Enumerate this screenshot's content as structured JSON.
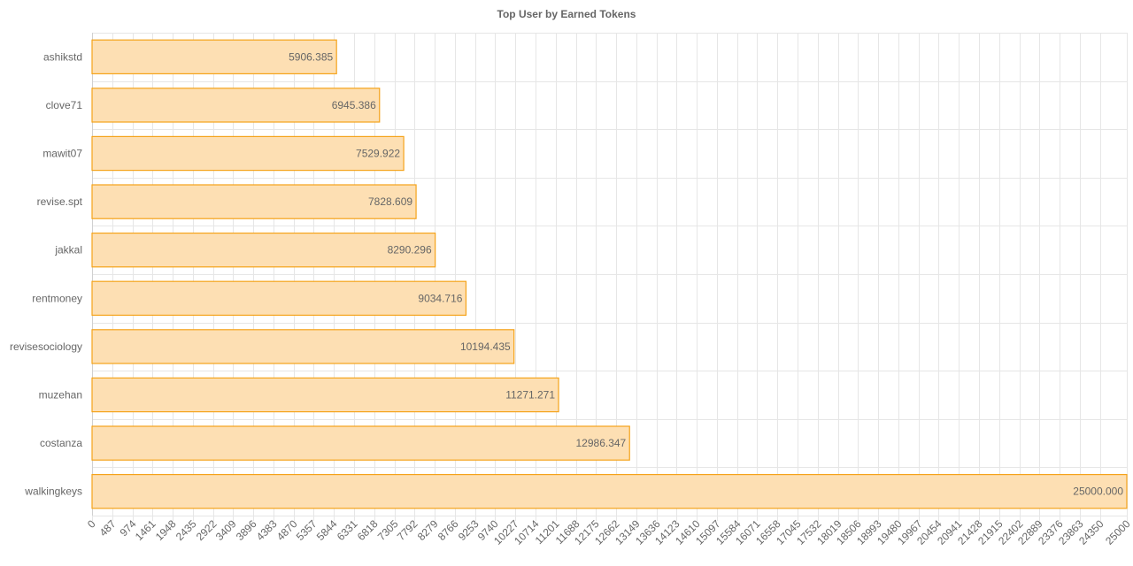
{
  "chart_data": {
    "type": "bar",
    "orientation": "horizontal",
    "title": "Top User by Earned Tokens",
    "categories": [
      "ashikstd",
      "clove71",
      "mawit07",
      "revise.spt",
      "jakkal",
      "rentmoney",
      "revisesociology",
      "muzehan",
      "costanza",
      "walkingkeys"
    ],
    "values": [
      5906.385,
      6945.386,
      7529.922,
      7828.609,
      8290.296,
      9034.716,
      10194.435,
      11271.271,
      12986.347,
      25000.0
    ],
    "value_labels": [
      "5906.385",
      "6945.386",
      "7529.922",
      "7828.609",
      "8290.296",
      "9034.716",
      "10194.435",
      "11271.271",
      "12986.347",
      "25000.000"
    ],
    "x_ticks": [
      "0",
      "487",
      "974",
      "1461",
      "1948",
      "2435",
      "2922",
      "3409",
      "3896",
      "4383",
      "4870",
      "5357",
      "5844",
      "6331",
      "6818",
      "7305",
      "7792",
      "8279",
      "8766",
      "9253",
      "9740",
      "10227",
      "10714",
      "11201",
      "11688",
      "12175",
      "12662",
      "13149",
      "13636",
      "14123",
      "14610",
      "15097",
      "15584",
      "16071",
      "16558",
      "17045",
      "17532",
      "18019",
      "18506",
      "18993",
      "19480",
      "19967",
      "20454",
      "20941",
      "21428",
      "21915",
      "22402",
      "22889",
      "23376",
      "23863",
      "24350",
      "25000"
    ],
    "xlim": [
      0,
      25000
    ],
    "grid": true,
    "bar_fill": "#fddfb3",
    "bar_stroke": "#f5a31a"
  }
}
